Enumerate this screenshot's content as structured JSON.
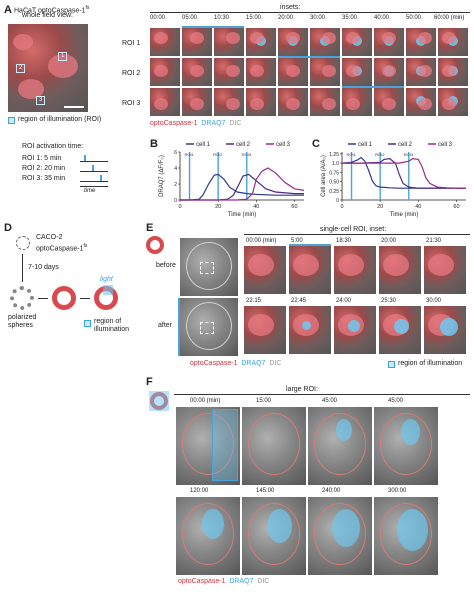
{
  "panels": {
    "A": {
      "label": "A",
      "title_line1": "HaCaT optoCaspase-1",
      "title_sup": "fs",
      "title_line2": "whole field view:",
      "roi_labels": [
        "1",
        "2",
        "3"
      ],
      "legend_text": "region of illumination (ROI)",
      "roi_activation_title": "ROI activation time:",
      "roi_times": [
        "ROI 1: 5 min",
        "ROI 2: 20 min",
        "ROI 3: 35 min"
      ],
      "time_label": "time",
      "insets_title": "insets:",
      "inset_times": [
        "00:00",
        "05:00",
        "10:30",
        "15:00",
        "20:00",
        "30:00",
        "35:00",
        "40:00",
        "50:00",
        "60:00 (min)"
      ],
      "roi_rows": [
        "ROI 1",
        "ROI 2",
        "ROI 3"
      ],
      "channels": [
        "optoCaspase-1",
        "DRAQ7",
        "DIC"
      ]
    },
    "B": {
      "label": "B",
      "ylabel": "DRAQ7 (ΔF/F₀)",
      "xlabel": "Time (min)",
      "legend": [
        "cell 1",
        "cell 2",
        "cell 3"
      ],
      "roi_tags": [
        "ROI1",
        "ROI2",
        "ROI3"
      ],
      "xticks": [
        "0",
        "20",
        "40",
        "60"
      ],
      "yticks": [
        "0",
        "2",
        "4",
        "6"
      ]
    },
    "C": {
      "label": "C",
      "ylabel": "Cell area (A/A₀)",
      "xlabel": "Time (min)",
      "legend": [
        "cell 1",
        "cell 2",
        "cell 3"
      ],
      "roi_tags": [
        "ROI1",
        "ROI2",
        "ROI3"
      ],
      "xticks": [
        "0",
        "20",
        "40",
        "60"
      ],
      "yticks": [
        "0",
        "0.25",
        "0.50",
        "0.75",
        "1.0",
        "1.25"
      ]
    },
    "D": {
      "label": "D",
      "title_line1": "CACO-2",
      "title_line2": "optoCaspase-1",
      "title_sup": "fs",
      "days": "7-10 days",
      "spheres": "polarized spheres",
      "light": "light",
      "legend_line1": "region of",
      "legend_line2": "illumination"
    },
    "E": {
      "label": "E",
      "title": "single-cell ROI, inset:",
      "row_labels": [
        "before",
        "after"
      ],
      "times_top": [
        "00:00 (min)",
        "5:00",
        "18:30",
        "20:00",
        "21:30"
      ],
      "times_bottom": [
        "22:15",
        "22:45",
        "24:00",
        "25:30",
        "30:00"
      ],
      "channels": [
        "optoCaspase-1",
        "DRAQ7",
        "DIC"
      ],
      "legend_text": "region of illumination"
    },
    "F": {
      "label": "F",
      "title": "large ROI:",
      "times_top": [
        "00:00 (min)",
        "15:00",
        "45:00",
        "45:00"
      ],
      "times_bottom": [
        "120:00",
        "145:00",
        "240:00",
        "300:00"
      ],
      "channels": [
        "optoCaspase-1",
        "DRAQ7",
        "DIC"
      ]
    }
  },
  "chart_data": [
    {
      "type": "line",
      "title": "",
      "xlabel": "Time (min)",
      "ylabel": "DRAQ7 (ΔF/F₀)",
      "xlim": [
        0,
        65
      ],
      "ylim": [
        0,
        6
      ],
      "series": [
        {
          "name": "cell 1",
          "color": "#2d3a8c",
          "x": [
            0,
            5,
            10,
            12,
            15,
            18,
            20,
            23,
            26,
            30,
            35,
            40,
            50,
            60,
            65
          ],
          "y": [
            0,
            0,
            0.1,
            0.6,
            2.0,
            3.1,
            3.2,
            2.6,
            1.6,
            1.0,
            0.8,
            0.7,
            0.6,
            0.6,
            0.6
          ]
        },
        {
          "name": "cell 2",
          "color": "#4b2a86",
          "x": [
            0,
            10,
            20,
            25,
            28,
            31,
            33,
            36,
            40,
            45,
            50,
            60,
            65
          ],
          "y": [
            0,
            0,
            0,
            0.1,
            0.6,
            2.0,
            3.0,
            3.2,
            2.4,
            1.4,
            1.0,
            0.8,
            0.8
          ]
        },
        {
          "name": "cell 3",
          "color": "#9b2a8a",
          "x": [
            0,
            20,
            30,
            35,
            38,
            40,
            43,
            46,
            50,
            55,
            60,
            65
          ],
          "y": [
            0,
            0,
            0,
            0.1,
            0.8,
            2.6,
            3.6,
            4.0,
            3.4,
            2.2,
            1.4,
            1.2
          ]
        }
      ],
      "roi_lines_x": [
        5,
        20,
        35
      ]
    },
    {
      "type": "line",
      "title": "",
      "xlabel": "Time (min)",
      "ylabel": "Cell area (A/A₀)",
      "xlim": [
        0,
        65
      ],
      "ylim": [
        0,
        1.3
      ],
      "series": [
        {
          "name": "cell 1",
          "color": "#2d3a8c",
          "x": [
            0,
            5,
            8,
            10,
            12,
            14,
            16,
            18,
            20,
            25,
            30,
            40,
            50,
            60,
            65
          ],
          "y": [
            1.0,
            1.02,
            1.08,
            1.15,
            1.05,
            0.8,
            0.5,
            0.38,
            0.35,
            0.33,
            0.32,
            0.32,
            0.32,
            0.32,
            0.32
          ]
        },
        {
          "name": "cell 2",
          "color": "#4b2a86",
          "x": [
            0,
            10,
            20,
            22,
            25,
            28,
            30,
            32,
            35,
            40,
            50,
            60,
            65
          ],
          "y": [
            1.0,
            1.0,
            1.02,
            1.1,
            1.12,
            1.0,
            0.7,
            0.45,
            0.35,
            0.32,
            0.32,
            0.32,
            0.32
          ]
        },
        {
          "name": "cell 3",
          "color": "#9b2a8a",
          "x": [
            0,
            20,
            30,
            35,
            37,
            40,
            42,
            44,
            46,
            50,
            55,
            60,
            65
          ],
          "y": [
            1.0,
            1.0,
            1.0,
            1.05,
            1.12,
            1.1,
            0.9,
            0.6,
            0.45,
            0.35,
            0.33,
            0.32,
            0.32
          ]
        }
      ],
      "roi_lines_x": [
        5,
        20,
        35
      ]
    }
  ]
}
